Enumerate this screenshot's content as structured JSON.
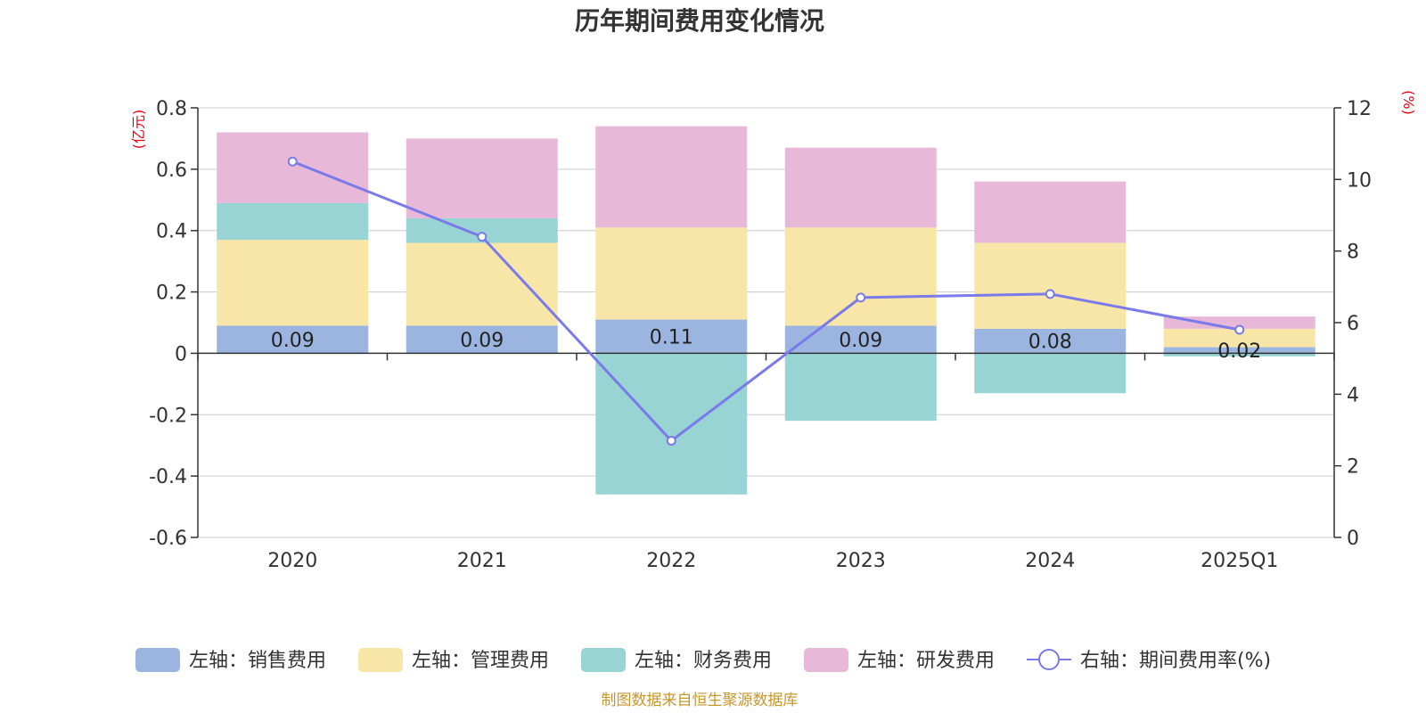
{
  "chart_data": {
    "type": "bar",
    "title": "历年期间费用变化情况",
    "categories": [
      "2020",
      "2021",
      "2022",
      "2023",
      "2024",
      "2025Q1"
    ],
    "stacked": true,
    "series": [
      {
        "name": "左轴：销售费用",
        "axis": "left",
        "color": "#9bb5e0",
        "values": [
          0.09,
          0.09,
          0.11,
          0.09,
          0.08,
          0.02
        ]
      },
      {
        "name": "左轴：管理费用",
        "axis": "left",
        "color": "#f8e6a8",
        "values": [
          0.28,
          0.27,
          0.3,
          0.32,
          0.28,
          0.06
        ]
      },
      {
        "name": "左轴：财务费用",
        "axis": "left",
        "color": "#98d4d4",
        "values": [
          0.12,
          0.08,
          -0.46,
          -0.22,
          -0.13,
          -0.01
        ]
      },
      {
        "name": "左轴：研发费用",
        "axis": "left",
        "color": "#e8b8d9",
        "values": [
          0.23,
          0.26,
          0.33,
          0.26,
          0.2,
          0.04
        ]
      }
    ],
    "line_series": {
      "name": "右轴：期间费用率(%)",
      "axis": "right",
      "color": "#7a7ae8",
      "values": [
        10.5,
        8.4,
        2.7,
        6.7,
        6.8,
        5.8
      ]
    },
    "data_labels": [
      "0.09",
      "0.09",
      "0.11",
      "0.09",
      "0.08",
      "0.02"
    ],
    "left_axis": {
      "unit": "(亿元)",
      "min": -0.6,
      "max": 0.8,
      "ticks": [
        0.8,
        0.6,
        0.4,
        0.2,
        0,
        -0.2,
        -0.4,
        -0.6
      ],
      "tick_labels": [
        "0.8",
        "0.6",
        "0.4",
        "0.2",
        "0",
        "-0.2",
        "-0.4",
        "-0.6"
      ]
    },
    "right_axis": {
      "unit": "(%)",
      "min": 0,
      "max": 12,
      "ticks": [
        12,
        10,
        8,
        6,
        4,
        2,
        0
      ],
      "tick_labels": [
        "12",
        "10",
        "8",
        "6",
        "4",
        "2",
        "0"
      ]
    },
    "grid": true,
    "legend_position": "bottom"
  },
  "source_note": "制图数据来自恒生聚源数据库"
}
